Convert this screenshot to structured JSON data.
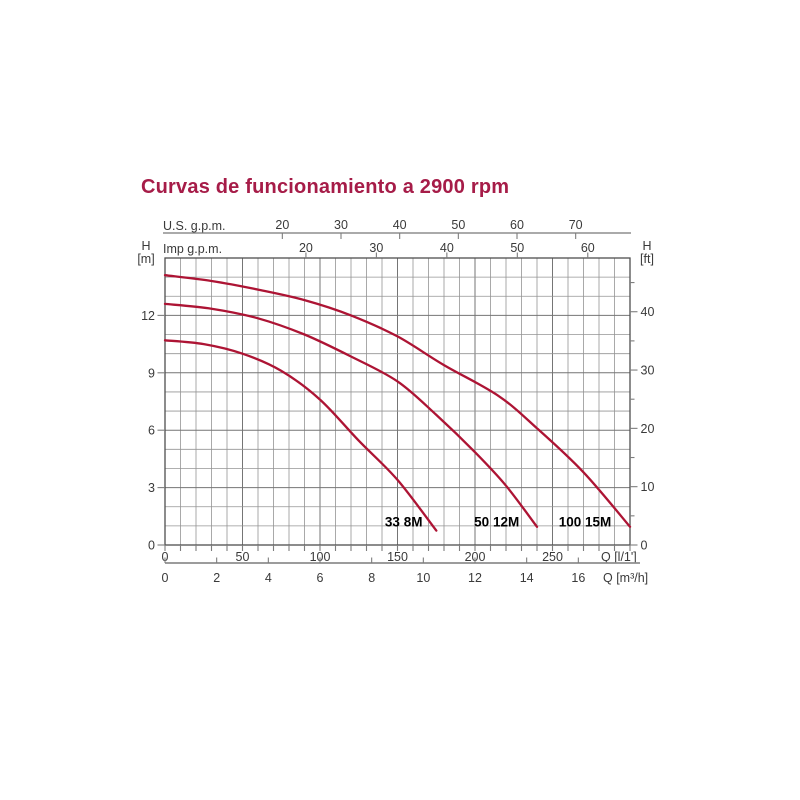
{
  "chart_data": {
    "type": "line",
    "title": "Curvas de funcionamiento a 2900 rpm",
    "title_color": "#a61c48",
    "curve_color": "#ad1434",
    "text_color": "#3a3a3a",
    "grid_on": true,
    "axes": {
      "top_outer": {
        "label": "U.S. g.p.m.",
        "ticks": [
          20,
          30,
          40,
          50,
          60,
          70
        ],
        "lmin_per_unit": 3.785
      },
      "top_inner": {
        "label": "Imp g.p.m.",
        "ticks": [
          20,
          30,
          40,
          50,
          60
        ],
        "lmin_per_unit": 4.546
      },
      "left": {
        "name": "H",
        "unit": "[m]",
        "ticks": [
          0,
          3,
          6,
          9,
          12
        ],
        "range": [
          0,
          15
        ],
        "minor_step": 1
      },
      "right": {
        "name": "H",
        "unit": "[ft]",
        "ticks": [
          0,
          10,
          20,
          30,
          40
        ],
        "minor_step": 5,
        "max": 45,
        "m_per_ft": 0.3048
      },
      "bottom_inner": {
        "label": "Q [l/1']",
        "ticks": [
          0,
          50,
          100,
          150,
          200,
          250
        ],
        "minor_step": 10,
        "range": [
          0,
          300
        ]
      },
      "bottom_outer": {
        "label": "Q [m³/h]",
        "ticks": [
          0,
          2,
          4,
          6,
          8,
          10,
          12,
          14,
          16
        ],
        "lmin_per_unit": 16.6667
      }
    },
    "series": [
      {
        "name": "33 8M",
        "label_at": {
          "q": 154,
          "h": 1.2
        },
        "points": [
          [
            0,
            10.7
          ],
          [
            25,
            10.5
          ],
          [
            50,
            10.0
          ],
          [
            75,
            9.1
          ],
          [
            100,
            7.6
          ],
          [
            125,
            5.45
          ],
          [
            150,
            3.4
          ],
          [
            175,
            0.75
          ]
        ]
      },
      {
        "name": "50 12M",
        "label_at": {
          "q": 214,
          "h": 1.2
        },
        "points": [
          [
            0,
            12.6
          ],
          [
            30,
            12.35
          ],
          [
            60,
            11.85
          ],
          [
            90,
            11.0
          ],
          [
            120,
            9.85
          ],
          [
            150,
            8.55
          ],
          [
            175,
            6.8
          ],
          [
            200,
            4.85
          ],
          [
            220,
            3.1
          ],
          [
            240,
            0.95
          ]
        ]
      },
      {
        "name": "100 15M",
        "label_at": {
          "q": 271,
          "h": 1.2
        },
        "points": [
          [
            0,
            14.1
          ],
          [
            30,
            13.8
          ],
          [
            60,
            13.35
          ],
          [
            90,
            12.8
          ],
          [
            120,
            12.0
          ],
          [
            150,
            10.9
          ],
          [
            180,
            9.4
          ],
          [
            215,
            7.8
          ],
          [
            240,
            6.1
          ],
          [
            270,
            3.8
          ],
          [
            300,
            0.95
          ]
        ]
      }
    ]
  }
}
